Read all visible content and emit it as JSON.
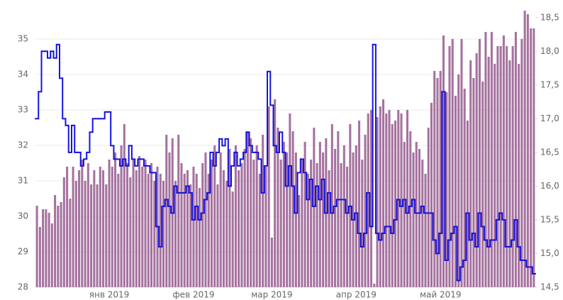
{
  "chart_data": {
    "type": "bar_line",
    "categories": [
      null,
      null,
      null,
      null,
      null,
      null,
      null,
      null,
      null,
      null,
      null,
      null,
      null,
      null,
      null,
      null,
      null,
      null,
      null,
      null,
      null,
      null,
      null,
      null,
      "янв 2019",
      null,
      null,
      null,
      null,
      null,
      null,
      null,
      null,
      null,
      null,
      null,
      null,
      null,
      null,
      null,
      null,
      null,
      null,
      null,
      null,
      null,
      null,
      null,
      null,
      null,
      null,
      null,
      "фев 2019",
      null,
      null,
      null,
      null,
      null,
      null,
      null,
      null,
      null,
      null,
      null,
      null,
      null,
      null,
      null,
      null,
      null,
      null,
      null,
      null,
      null,
      null,
      null,
      null,
      null,
      "мар 2019",
      null,
      null,
      null,
      null,
      null,
      null,
      null,
      null,
      null,
      null,
      null,
      null,
      null,
      null,
      null,
      null,
      null,
      null,
      null,
      null,
      null,
      null,
      null,
      null,
      null,
      null,
      null,
      "апр 2019",
      null,
      null,
      null,
      null,
      null,
      null,
      null,
      null,
      null,
      null,
      null,
      null,
      null,
      null,
      null,
      null,
      null,
      null,
      null,
      null,
      null,
      null,
      null,
      null,
      null,
      null,
      null,
      "май 2019",
      null,
      null,
      null,
      null,
      null,
      null,
      null,
      null,
      null,
      null,
      null,
      null,
      null,
      null,
      null,
      null,
      null,
      null,
      null,
      null,
      null,
      null,
      null,
      null,
      null,
      null,
      null,
      null,
      null,
      null,
      null
    ],
    "series": [
      {
        "color": "#a5729f",
        "values": [
          30.3,
          29.7,
          30.2,
          30.2,
          30.1,
          29.8,
          30.6,
          30.3,
          30.4,
          31.1,
          31.4,
          30.5,
          31.4,
          31.0,
          31.3,
          31.6,
          31.0,
          31.5,
          30.9,
          31.3,
          30.9,
          31.4,
          31.3,
          30.9,
          31.6,
          31.4,
          31.8,
          31.2,
          32.0,
          32.6,
          31.5,
          31.1,
          31.6,
          31.3,
          31.7,
          31.4,
          31.6,
          31.2,
          31.5,
          31.0,
          31.4,
          31.2,
          31.0,
          32.3,
          31.8,
          32.2,
          31.0,
          32.3,
          31.5,
          31.2,
          31.3,
          30.9,
          31.4,
          31.2,
          30.8,
          31.5,
          31.8,
          31.2,
          31.6,
          32.0,
          30.9,
          31.8,
          31.3,
          31.0,
          31.9,
          30.7,
          32.0,
          31.3,
          31.5,
          31.9,
          32.4,
          32.2,
          31.6,
          32.0,
          31.2,
          32.3,
          31.4,
          33.1,
          29.4,
          33.3,
          32.5,
          31.6,
          32.1,
          31.8,
          32.9,
          32.4,
          31.8,
          30.6,
          31.6,
          32.1,
          31.2,
          31.6,
          32.5,
          31.5,
          32.1,
          31.8,
          32.2,
          31.3,
          32.6,
          31.9,
          32.4,
          31.5,
          32.0,
          31.4,
          32.6,
          31.8,
          32.0,
          32.7,
          31.6,
          32.3,
          32.9,
          33.0,
          28.1,
          32.8,
          33.1,
          33.3,
          32.9,
          33.0,
          32.6,
          32.7,
          33.0,
          32.9,
          32.1,
          33.0,
          32.4,
          31.8,
          32.1,
          31.9,
          31.6,
          31.2,
          32.5,
          33.2,
          34.1,
          33.9,
          34.1,
          35.1,
          33.5,
          34.8,
          35.0,
          33.4,
          34.0,
          35.0,
          33.6,
          32.7,
          34.4,
          33.9,
          34.6,
          35.0,
          33.8,
          35.2,
          34.5,
          35.2,
          34.3,
          34.8,
          34.8,
          35.1,
          34.8,
          34.4,
          34.8,
          35.2,
          34.3,
          35.0,
          35.8,
          35.7,
          35.3,
          35.3
        ]
      },
      {
        "color": "#1414e0",
        "axis": "y2",
        "values": [
          17.0,
          17.4,
          18.0,
          18.0,
          17.9,
          18.0,
          17.9,
          18.1,
          17.6,
          17.0,
          16.9,
          16.5,
          16.9,
          16.5,
          16.5,
          16.3,
          16.4,
          16.5,
          16.8,
          17.0,
          17.0,
          17.0,
          17.0,
          17.1,
          17.1,
          16.6,
          16.4,
          16.4,
          16.3,
          16.4,
          16.3,
          16.6,
          16.4,
          16.3,
          16.4,
          16.4,
          16.3,
          16.3,
          16.2,
          16.2,
          15.4,
          15.1,
          15.7,
          15.8,
          15.7,
          15.6,
          16.0,
          15.9,
          15.9,
          15.9,
          16.0,
          15.9,
          15.5,
          15.7,
          15.5,
          15.6,
          15.8,
          15.9,
          16.5,
          16.3,
          16.5,
          16.7,
          16.6,
          16.7,
          16.0,
          16.3,
          16.5,
          16.3,
          16.4,
          16.5,
          16.8,
          16.6,
          16.5,
          16.5,
          16.4,
          15.9,
          16.3,
          17.7,
          17.2,
          16.6,
          16.5,
          16.8,
          16.5,
          16.0,
          16.3,
          16.0,
          15.6,
          16.2,
          16.4,
          16.2,
          15.8,
          16.1,
          15.7,
          16.0,
          15.8,
          16.1,
          15.6,
          15.9,
          15.6,
          15.7,
          15.8,
          15.8,
          15.8,
          15.6,
          15.7,
          15.5,
          15.6,
          15.3,
          15.1,
          15.3,
          15.9,
          15.4,
          18.1,
          15.3,
          15.2,
          15.3,
          15.4,
          15.4,
          15.3,
          15.5,
          15.8,
          15.7,
          15.8,
          15.6,
          15.7,
          15.8,
          15.6,
          15.6,
          15.7,
          15.6,
          15.6,
          15.6,
          15.2,
          15.0,
          15.3,
          17.4,
          14.9,
          15.2,
          15.3,
          15.4,
          14.6,
          14.8,
          14.9,
          15.6,
          15.2,
          15.3,
          15.1,
          15.6,
          15.4,
          15.2,
          15.1,
          15.2,
          15.2,
          15.5,
          15.6,
          15.5,
          15.1,
          15.1,
          15.2,
          15.5,
          15.1,
          14.9,
          14.9,
          14.8,
          14.8,
          14.7
        ]
      }
    ],
    "ylim": [
      28,
      35.7
    ],
    "yticks": [
      28,
      29,
      30,
      31,
      32,
      33,
      34,
      35
    ],
    "y2lim": [
      14.5,
      18.55
    ],
    "y2ticks": [
      {
        "value": 14.5,
        "label": "14,5"
      },
      {
        "value": 15,
        "label": "15,0"
      },
      {
        "value": 15.5,
        "label": "15,5"
      },
      {
        "value": 16,
        "label": "16,0"
      },
      {
        "value": 16.5,
        "label": "16,5"
      },
      {
        "value": 17,
        "label": "17,0"
      },
      {
        "value": 17.5,
        "label": "17,5"
      },
      {
        "value": 18,
        "label": "18,0"
      },
      {
        "value": 18.5,
        "label": "18,5"
      }
    ],
    "grid": true
  }
}
